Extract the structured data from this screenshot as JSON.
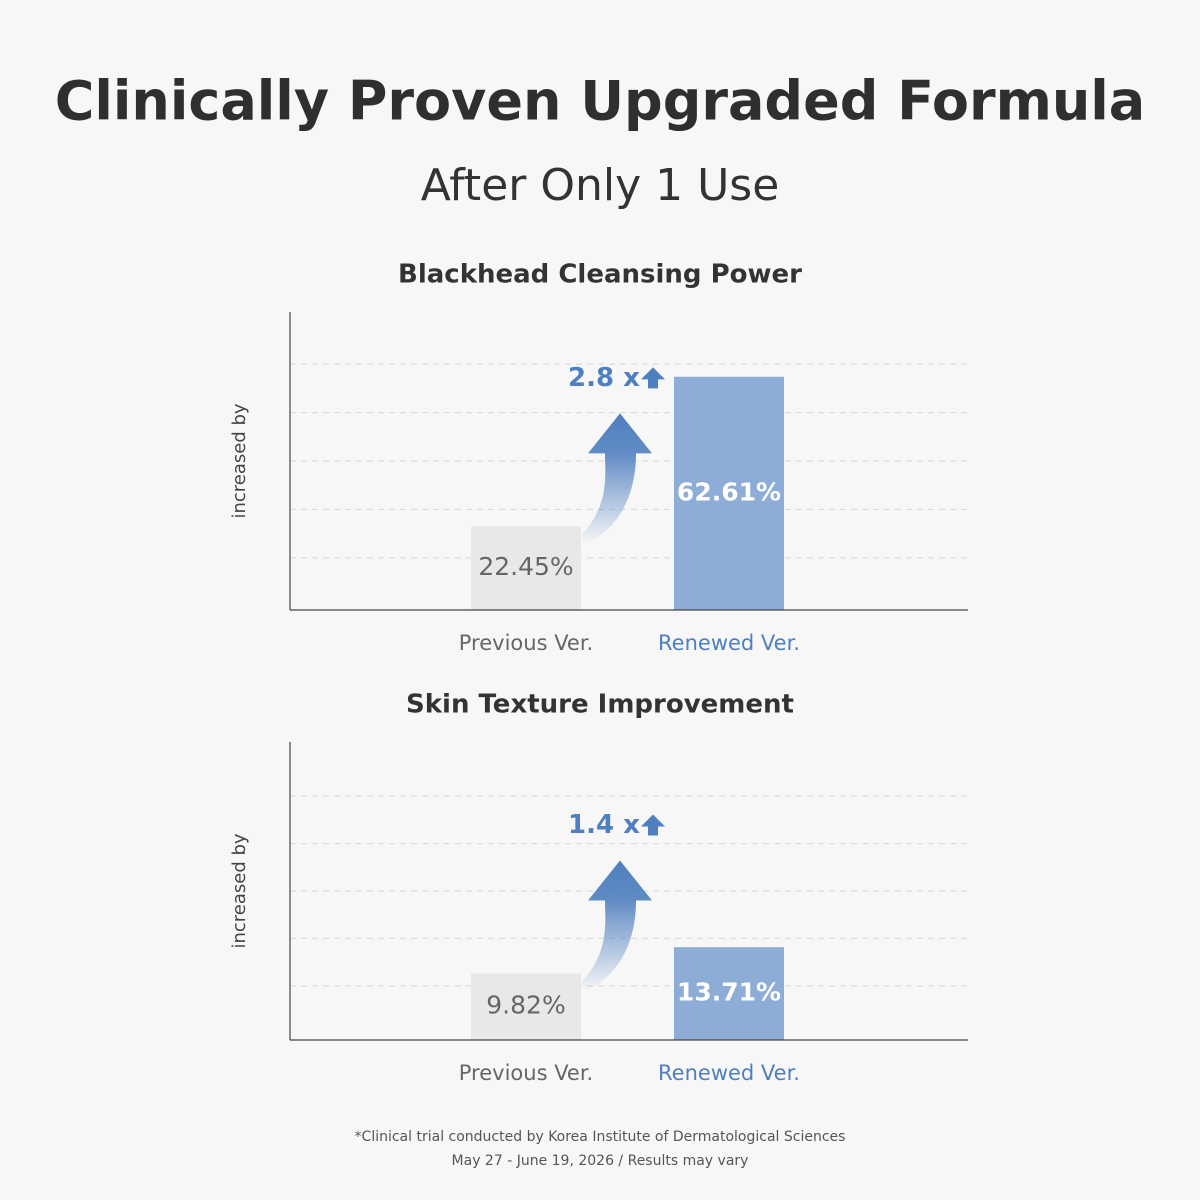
{
  "header": {
    "title": "Clinically Proven Upgraded Formula",
    "subtitle": "After Only 1 Use"
  },
  "chart_data": [
    {
      "type": "bar",
      "title": "Blackhead Cleansing Power",
      "y_label": "increased by",
      "categories": [
        "Previous Ver.",
        "Renewed Ver."
      ],
      "values": [
        22.45,
        62.61
      ],
      "value_labels": [
        "22.45%",
        "62.61%"
      ],
      "colors": [
        "#e8e8e8",
        "#8eadd6"
      ],
      "label_colors": [
        "#666666",
        "#4f7fbf"
      ],
      "ylim": [
        0,
        80
      ],
      "gridlines": [
        14,
        27,
        40,
        53,
        66
      ],
      "grid": true,
      "annotation": "2.8 x"
    },
    {
      "type": "bar",
      "title": "Skin Texture Improvement",
      "y_label": "increased by",
      "categories": [
        "Previous Ver.",
        "Renewed Ver."
      ],
      "values": [
        9.82,
        13.71
      ],
      "value_labels": [
        "9.82%",
        "13.71%"
      ],
      "colors": [
        "#e8e8e8",
        "#8eadd6"
      ],
      "label_colors": [
        "#666666",
        "#4f7fbf"
      ],
      "ylim": [
        0,
        44
      ],
      "gridlines": [
        8,
        15,
        22,
        29,
        36
      ],
      "grid": true,
      "annotation": "1.4 x"
    }
  ],
  "footnote": [
    "*Clinical trial conducted by Korea Institute of Dermatological Sciences",
    "May 27 - June 19, 2026 / Results may vary"
  ]
}
